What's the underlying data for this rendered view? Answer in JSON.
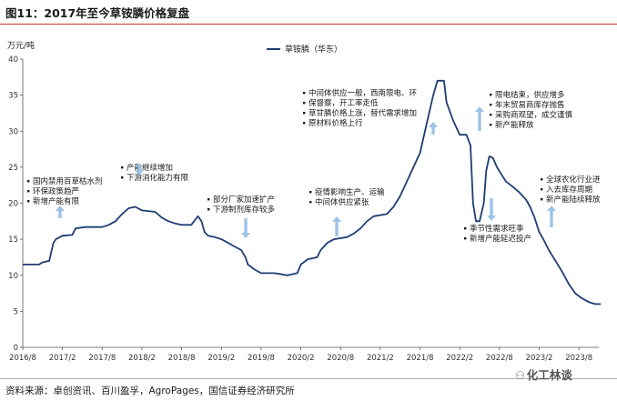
{
  "figure_title": "图11：2017年至今草铵膦价格复盘",
  "source": "资料来源：卓创资讯、百川盈孚，AgroPages，国信证券经济研究所",
  "watermark": "化工林谈",
  "watermark_icon": "wechat-icon",
  "colors": {
    "line": "#1f3d73",
    "arrow": "#9dc3e6",
    "title_rule": "#c0392b"
  },
  "chart_data": {
    "type": "line",
    "ylabel": "万元/吨",
    "xlabel": "",
    "ylim": [
      0,
      40
    ],
    "yticks": [
      0,
      5,
      10,
      15,
      20,
      25,
      30,
      35,
      40
    ],
    "xlim": [
      "2016-08",
      "2023-11"
    ],
    "xticks": [
      "2016/8",
      "2017/2",
      "2017/8",
      "2018/2",
      "2018/8",
      "2019/2",
      "2019/8",
      "2020/2",
      "2020/8",
      "2021/2",
      "2021/8",
      "2022/2",
      "2022/8",
      "2023/2",
      "2023/8"
    ],
    "grid": false,
    "legend_position": "top-center",
    "series": [
      {
        "name": "草铵膦（华东）",
        "points": [
          [
            "2016-08-01",
            11.5
          ],
          [
            "2016-10-15",
            11.5
          ],
          [
            "2016-11-01",
            11.8
          ],
          [
            "2016-12-01",
            12.0
          ],
          [
            "2016-12-20",
            14.5
          ],
          [
            "2017-01-01",
            15.0
          ],
          [
            "2017-02-01",
            15.5
          ],
          [
            "2017-03-15",
            15.6
          ],
          [
            "2017-04-01",
            16.5
          ],
          [
            "2017-05-15",
            16.7
          ],
          [
            "2017-08-01",
            16.7
          ],
          [
            "2017-09-01",
            17.0
          ],
          [
            "2017-10-01",
            17.5
          ],
          [
            "2017-11-01",
            18.5
          ],
          [
            "2017-12-01",
            19.3
          ],
          [
            "2018-01-01",
            19.5
          ],
          [
            "2018-02-01",
            19.0
          ],
          [
            "2018-04-01",
            18.8
          ],
          [
            "2018-05-01",
            18.0
          ],
          [
            "2018-06-01",
            17.5
          ],
          [
            "2018-07-01",
            17.2
          ],
          [
            "2018-08-01",
            17.0
          ],
          [
            "2018-09-15",
            17.0
          ],
          [
            "2018-10-15",
            18.2
          ],
          [
            "2018-11-01",
            17.5
          ],
          [
            "2018-11-15",
            16.0
          ],
          [
            "2018-12-01",
            15.5
          ],
          [
            "2019-01-01",
            15.3
          ],
          [
            "2019-02-01",
            15.0
          ],
          [
            "2019-03-01",
            14.5
          ],
          [
            "2019-04-01",
            14.0
          ],
          [
            "2019-05-01",
            13.5
          ],
          [
            "2019-05-20",
            12.5
          ],
          [
            "2019-06-01",
            11.5
          ],
          [
            "2019-07-01",
            10.8
          ],
          [
            "2019-08-01",
            10.3
          ],
          [
            "2019-10-01",
            10.3
          ],
          [
            "2019-12-01",
            10.0
          ],
          [
            "2020-01-15",
            10.3
          ],
          [
            "2020-02-01",
            11.5
          ],
          [
            "2020-03-01",
            12.2
          ],
          [
            "2020-04-15",
            12.5
          ],
          [
            "2020-05-01",
            13.5
          ],
          [
            "2020-06-01",
            14.5
          ],
          [
            "2020-07-01",
            15.0
          ],
          [
            "2020-09-01",
            15.3
          ],
          [
            "2020-10-01",
            15.8
          ],
          [
            "2020-11-01",
            16.5
          ],
          [
            "2020-12-01",
            17.5
          ],
          [
            "2021-01-01",
            18.2
          ],
          [
            "2021-03-01",
            18.5
          ],
          [
            "2021-04-01",
            19.5
          ],
          [
            "2021-05-01",
            21.0
          ],
          [
            "2021-06-01",
            23.0
          ],
          [
            "2021-07-01",
            25.0
          ],
          [
            "2021-08-01",
            27.0
          ],
          [
            "2021-09-01",
            31.0
          ],
          [
            "2021-10-01",
            35.0
          ],
          [
            "2021-10-20",
            37.0
          ],
          [
            "2021-11-20",
            37.0
          ],
          [
            "2021-12-01",
            34.0
          ],
          [
            "2022-01-01",
            31.5
          ],
          [
            "2022-02-01",
            29.5
          ],
          [
            "2022-03-01",
            29.5
          ],
          [
            "2022-03-20",
            28.0
          ],
          [
            "2022-04-01",
            20.0
          ],
          [
            "2022-04-15",
            17.5
          ],
          [
            "2022-05-01",
            17.5
          ],
          [
            "2022-05-20",
            20.0
          ],
          [
            "2022-06-01",
            24.5
          ],
          [
            "2022-06-15",
            26.5
          ],
          [
            "2022-07-01",
            26.3
          ],
          [
            "2022-07-20",
            25.0
          ],
          [
            "2022-08-10",
            24.0
          ],
          [
            "2022-09-01",
            23.0
          ],
          [
            "2022-10-01",
            22.3
          ],
          [
            "2022-11-01",
            21.5
          ],
          [
            "2022-12-01",
            20.5
          ],
          [
            "2022-12-20",
            19.5
          ],
          [
            "2023-01-10",
            18.0
          ],
          [
            "2023-02-01",
            16.0
          ],
          [
            "2023-02-20",
            15.0
          ],
          [
            "2023-03-15",
            13.5
          ],
          [
            "2023-04-15",
            12.0
          ],
          [
            "2023-05-15",
            10.5
          ],
          [
            "2023-06-15",
            8.8
          ],
          [
            "2023-07-15",
            7.5
          ],
          [
            "2023-08-15",
            6.8
          ],
          [
            "2023-09-15",
            6.3
          ],
          [
            "2023-10-15",
            6.0
          ],
          [
            "2023-11-10",
            6.0
          ]
        ]
      }
    ],
    "annotations": [
      {
        "lines": [
          "国内禁用百草枯水剂",
          "环保政策趋严",
          "新增产能有限"
        ],
        "arrow": "up",
        "arrow_at": [
          "2017-01-01",
          15.5
        ]
      },
      {
        "lines": [
          "产能继续增加",
          "下游消化能力有限"
        ],
        "arrow": "down",
        "arrow_at": [
          "2017-11-01",
          20.0
        ]
      },
      {
        "lines": [
          "部分厂家加速扩产",
          "下游制剂库存较多"
        ],
        "arrow": "down",
        "arrow_at": [
          "2019-05-01",
          14.5
        ]
      },
      {
        "lines": [
          "疫情影响生产、运输",
          "中间体供应紧张"
        ],
        "arrow": "up",
        "arrow_at": [
          "2020-04-15",
          16.0
        ]
      },
      {
        "lines": [
          "中间体供应一般，西南限电、环",
          "保督察，开工率走低",
          "草甘膦价格上涨，替代需求增加",
          "原材料价格上行"
        ],
        "arrow": "up",
        "arrow_at": [
          "2021-07-01",
          28.0
        ]
      },
      {
        "lines": [
          "限电结束，供应增多",
          "年末贸易商库存抛售",
          "采购商观望，成交谨慎",
          "新产能释放"
        ],
        "arrow": "up",
        "arrow_at": [
          "2022-03-01",
          29.5
        ]
      },
      {
        "lines": [
          "季节性需求旺季",
          "新增产能延迟投产"
        ],
        "arrow": "down",
        "arrow_at": [
          "2022-06-01",
          24.5
        ]
      },
      {
        "lines": [
          "全球农化行业进",
          "入去库存周期",
          "新产能陆续释放"
        ],
        "arrow": "up",
        "arrow_at": [
          "2023-02-01",
          17.5
        ]
      }
    ]
  }
}
